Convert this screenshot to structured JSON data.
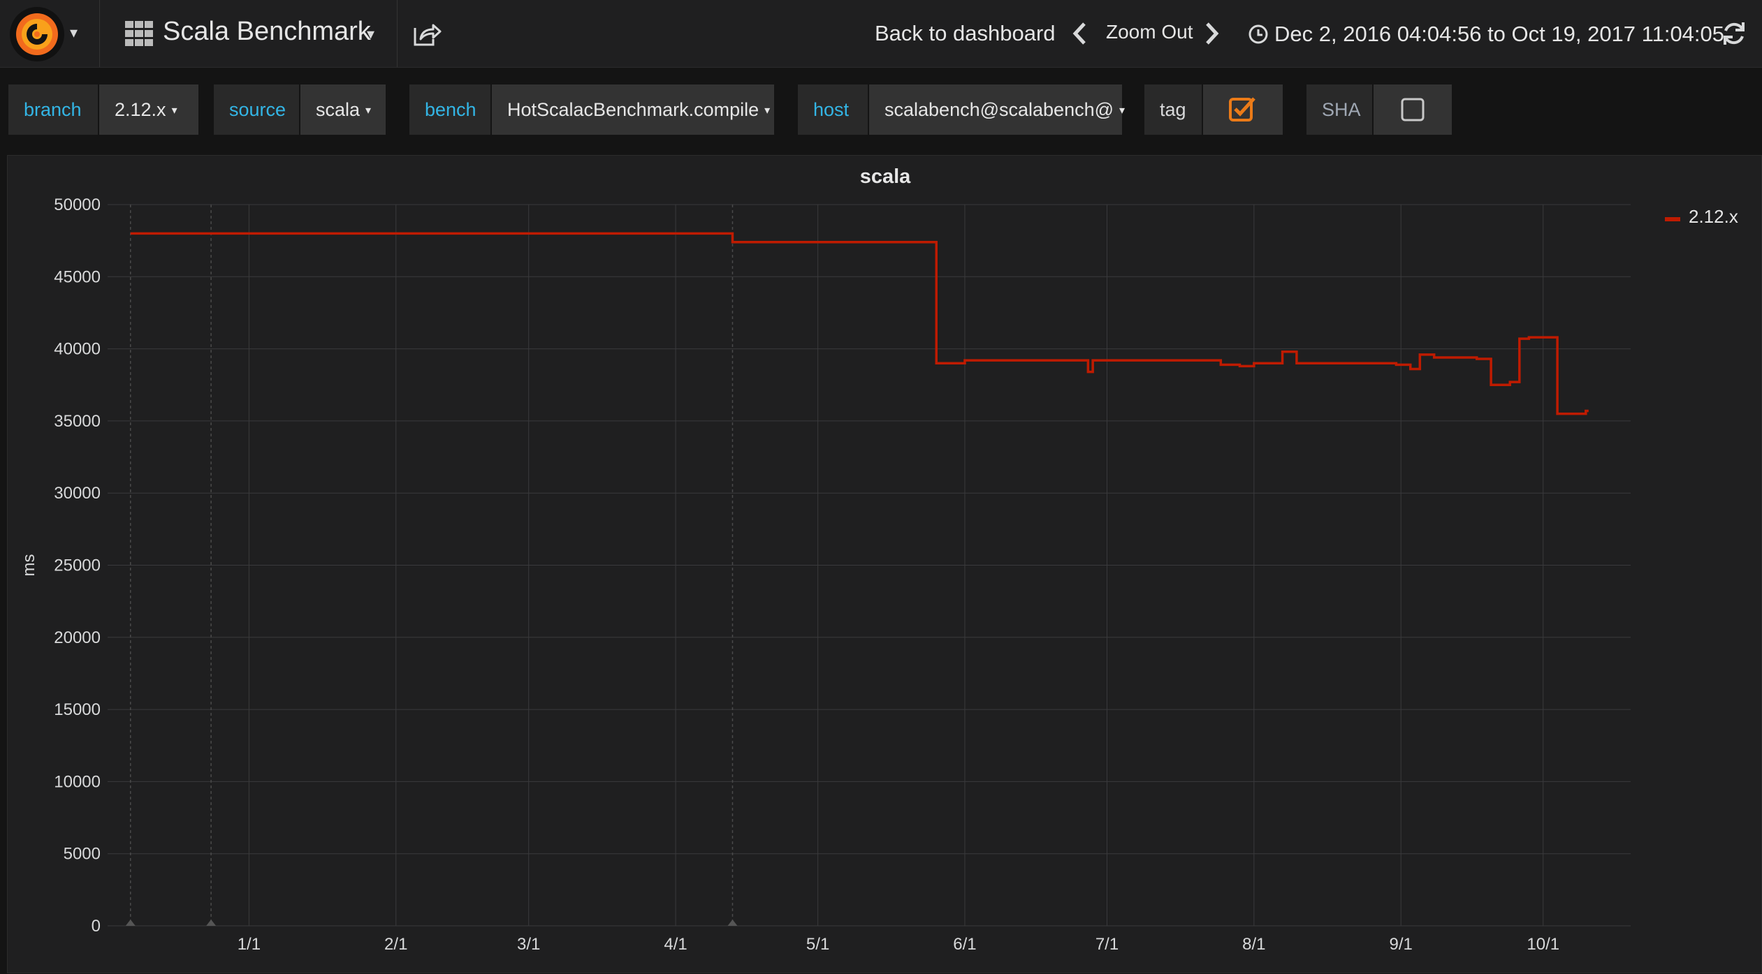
{
  "nav": {
    "dashboard_title": "Scala Benchmark",
    "back_label": "Back to dashboard",
    "zoom_out_label": "Zoom Out",
    "time_range": "Dec 2, 2016 04:04:56 to Oct 19, 2017 11:04:05"
  },
  "variables": {
    "branch": {
      "label": "branch",
      "value": "2.12.x"
    },
    "source": {
      "label": "source",
      "value": "scala"
    },
    "bench": {
      "label": "bench",
      "value": "HotScalacBenchmark.compile"
    },
    "host": {
      "label": "host",
      "value": "scalabench@scalabench@"
    },
    "tag": {
      "label": "tag",
      "checked": true
    },
    "sha": {
      "label": "SHA",
      "checked": false
    }
  },
  "colors": {
    "accent_blue": "#33b5e5",
    "series_red": "#bf1b00",
    "checkbox_orange": "#eb7b18"
  },
  "chart_data": {
    "type": "line",
    "title": "scala",
    "ylabel": "ms",
    "xlabel": "",
    "ylim": [
      0,
      50000
    ],
    "y_ticks": [
      0,
      5000,
      10000,
      15000,
      20000,
      25000,
      30000,
      35000,
      40000,
      45000,
      50000
    ],
    "x_range": [
      "2016-12-02",
      "2017-10-19"
    ],
    "x_ticks": [
      {
        "date": "2017-01-01",
        "label": "1/1"
      },
      {
        "date": "2017-02-01",
        "label": "2/1"
      },
      {
        "date": "2017-03-01",
        "label": "3/1"
      },
      {
        "date": "2017-04-01",
        "label": "4/1"
      },
      {
        "date": "2017-05-01",
        "label": "5/1"
      },
      {
        "date": "2017-06-01",
        "label": "6/1"
      },
      {
        "date": "2017-07-01",
        "label": "7/1"
      },
      {
        "date": "2017-08-01",
        "label": "8/1"
      },
      {
        "date": "2017-09-01",
        "label": "9/1"
      },
      {
        "date": "2017-10-01",
        "label": "10/1"
      }
    ],
    "annotations": [
      "2016-12-07",
      "2016-12-24",
      "2017-04-13"
    ],
    "grid": true,
    "legend_position": "right",
    "series": [
      {
        "name": "2.12.x",
        "color": "#bf1b00",
        "step": true,
        "points": [
          [
            "2016-12-07",
            48000
          ],
          [
            "2017-04-13",
            47400
          ],
          [
            "2017-05-26",
            39000
          ],
          [
            "2017-06-01",
            39200
          ],
          [
            "2017-06-27",
            38400
          ],
          [
            "2017-06-28",
            39200
          ],
          [
            "2017-07-25",
            38900
          ],
          [
            "2017-07-29",
            38800
          ],
          [
            "2017-08-01",
            39000
          ],
          [
            "2017-08-07",
            39800
          ],
          [
            "2017-08-10",
            39000
          ],
          [
            "2017-08-31",
            38900
          ],
          [
            "2017-09-03",
            38600
          ],
          [
            "2017-09-05",
            39600
          ],
          [
            "2017-09-08",
            39400
          ],
          [
            "2017-09-17",
            39300
          ],
          [
            "2017-09-20",
            37500
          ],
          [
            "2017-09-24",
            37700
          ],
          [
            "2017-09-26",
            40700
          ],
          [
            "2017-09-28",
            40800
          ],
          [
            "2017-10-04",
            35500
          ],
          [
            "2017-10-10",
            35700
          ]
        ]
      }
    ]
  }
}
